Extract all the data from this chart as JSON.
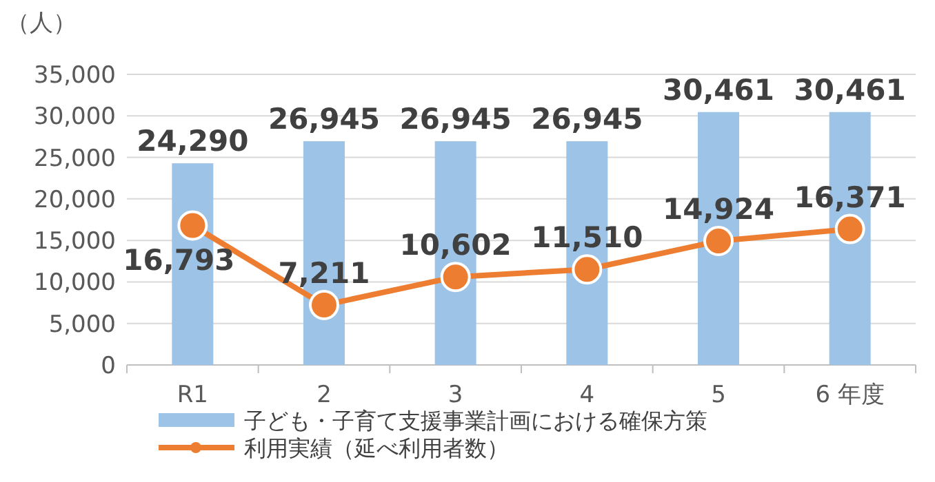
{
  "chart_data": {
    "type": "bar",
    "ylabel": "（人）",
    "categories": [
      "R1",
      "2",
      "3",
      "4",
      "5",
      "6 年度"
    ],
    "series": [
      {
        "name": "子ども・子育て支援事業計画における確保方策",
        "color": "#9dc3e6",
        "values": [
          24290,
          26945,
          26945,
          26945,
          30461,
          30461
        ],
        "value_labels": [
          "24,290",
          "26,945",
          "26,945",
          "26,945",
          "30,461",
          "30,461"
        ]
      },
      {
        "name": "利用実績（延べ利用者数）",
        "type": "line",
        "color": "#ed7d31",
        "marker": "circle",
        "values": [
          16793,
          7211,
          10602,
          11510,
          14924,
          16371
        ],
        "value_labels": [
          "16,793",
          "7,211",
          "10,602",
          "11,510",
          "14,924",
          "16,371"
        ]
      }
    ],
    "ylim": [
      0,
      35000
    ],
    "yticks": [
      {
        "value": 0,
        "label": "0"
      },
      {
        "value": 5000,
        "label": "5,000"
      },
      {
        "value": 10000,
        "label": "10,000"
      },
      {
        "value": 15000,
        "label": "15,000"
      },
      {
        "value": 20000,
        "label": "20,000"
      },
      {
        "value": 25000,
        "label": "25,000"
      },
      {
        "value": 30000,
        "label": "30,000"
      },
      {
        "value": 35000,
        "label": "35,000"
      }
    ],
    "grid": "y",
    "legend": "bottom"
  }
}
